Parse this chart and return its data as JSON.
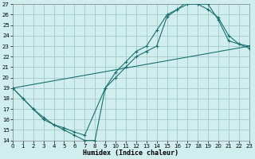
{
  "xlabel": "Humidex (Indice chaleur)",
  "bg_color": "#d0eeee",
  "grid_color": "#aacccc",
  "line_color": "#1a7070",
  "xlim": [
    0,
    23
  ],
  "ylim": [
    14,
    27
  ],
  "xticks": [
    0,
    1,
    2,
    3,
    4,
    5,
    6,
    7,
    8,
    9,
    10,
    11,
    12,
    13,
    14,
    15,
    16,
    17,
    18,
    19,
    20,
    21,
    22,
    23
  ],
  "yticks": [
    14,
    15,
    16,
    17,
    18,
    19,
    20,
    21,
    22,
    23,
    24,
    25,
    26,
    27
  ],
  "curve1_x": [
    0,
    1,
    2,
    3,
    4,
    5,
    6,
    7,
    8,
    9,
    10,
    11,
    12,
    13,
    14,
    15,
    16,
    17,
    18,
    19,
    20,
    21,
    22,
    23
  ],
  "curve1_y": [
    19,
    18,
    17,
    16,
    15.5,
    15,
    14.5,
    14,
    14,
    19,
    20.5,
    21.5,
    22.5,
    23,
    24.5,
    26,
    26.5,
    27.3,
    27,
    27,
    25.5,
    23.5,
    23.2,
    23
  ],
  "curve2_x": [
    0,
    1,
    2,
    3,
    4,
    5,
    6,
    7,
    9,
    10,
    11,
    12,
    13,
    14,
    15,
    16,
    17,
    18,
    19,
    20,
    21,
    22,
    23
  ],
  "curve2_y": [
    19,
    18,
    17,
    16.2,
    15.5,
    15.2,
    14.8,
    14.5,
    19,
    20,
    21,
    22,
    22.5,
    23,
    25.8,
    26.5,
    27,
    27,
    26.5,
    25.7,
    24,
    23.2,
    22.8
  ],
  "line_x": [
    0,
    23
  ],
  "line_y": [
    19,
    23
  ]
}
